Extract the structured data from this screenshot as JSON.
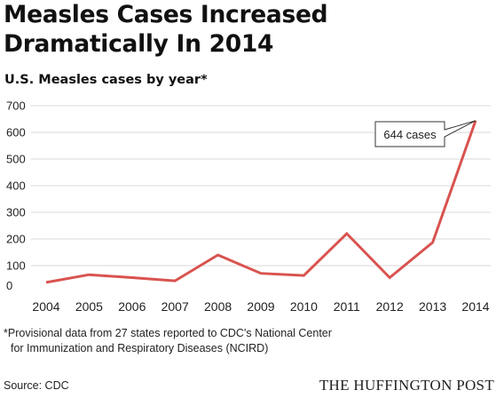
{
  "title_line1": "Measles Cases Increased",
  "title_line2": "Dramatically In 2014",
  "footnote_line1": "*Provisional data from 27 states reported to CDC's National Center",
  "footnote_line2": "for Immunization and Respiratory Diseases (NCIRD)",
  "source": "Source: CDC",
  "brand": "THE HUFFINGTON POST",
  "colors": {
    "line": "#d9534f",
    "grid": "#d9d9d9",
    "text": "#222222"
  },
  "chart_data": {
    "type": "line",
    "title": "U.S. Measles cases by year*",
    "xlabel": "",
    "ylabel": "",
    "categories": [
      "2004",
      "2005",
      "2006",
      "2007",
      "2008",
      "2009",
      "2010",
      "2011",
      "2012",
      "2013",
      "2014"
    ],
    "series": [
      {
        "values": [
          37,
          66,
          55,
          43,
          140,
          71,
          63,
          220,
          55,
          187,
          644
        ]
      }
    ],
    "ylim": [
      0,
      700
    ],
    "yticks": [
      0,
      100,
      200,
      300,
      400,
      500,
      600,
      700
    ],
    "grid": true,
    "annotation": {
      "text": "644 cases",
      "category": "2014",
      "value": 644
    }
  }
}
